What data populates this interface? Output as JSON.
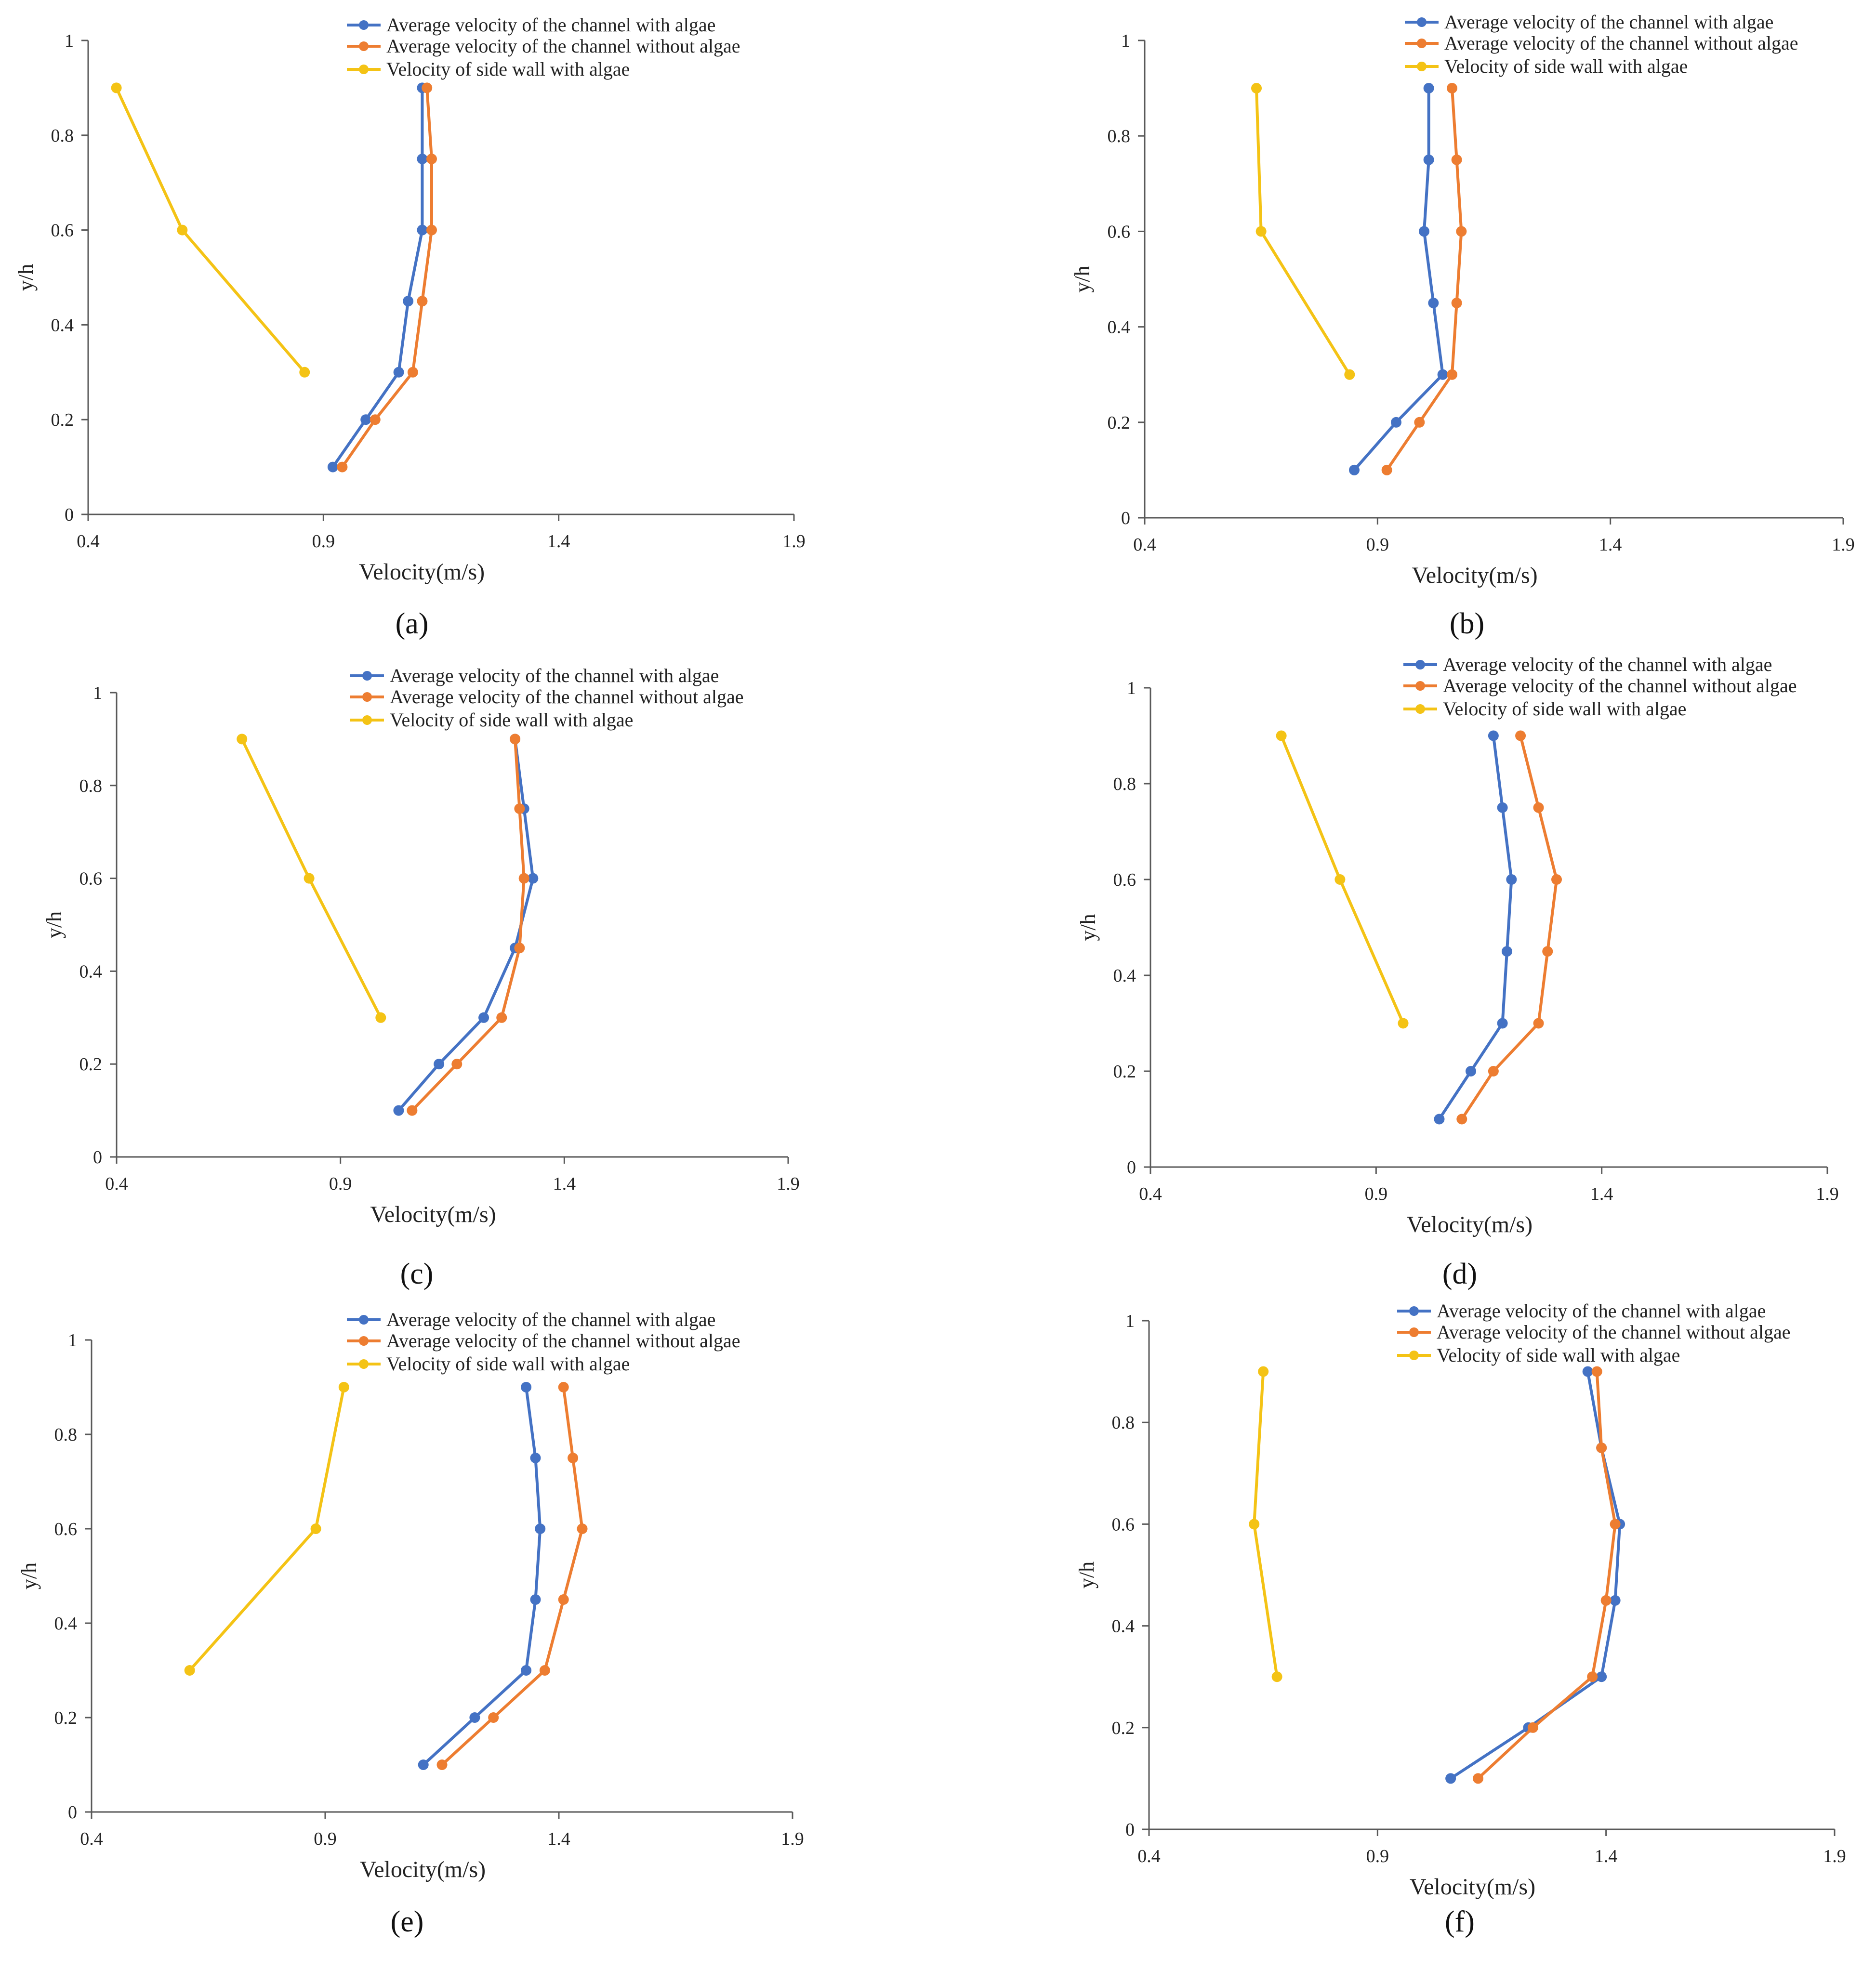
{
  "colors": {
    "with_algae": "#4472C4",
    "without_algae": "#ED7D31",
    "side_wall": "#F4C315",
    "axis": "#595959",
    "text": "#222222"
  },
  "legend_labels": [
    "Average velocity of the channel with algae",
    "Average velocity of the channel without algae",
    "Velocity of  side wall with algae"
  ],
  "chart_data": [
    {
      "type": "line",
      "panel_label": "(a)",
      "xlabel": "Velocity(m/s)",
      "ylabel": "y/h",
      "xlim": [
        0.4,
        1.9
      ],
      "ylim": [
        0,
        1
      ],
      "xticks": [
        "0.4",
        "0.9",
        "1.4",
        "1.9"
      ],
      "yticks": [
        "0",
        "0.2",
        "0.4",
        "0.6",
        "0.8",
        "1"
      ],
      "series": [
        {
          "name": "Average velocity of the channel with algae",
          "x": [
            0.92,
            0.99,
            1.06,
            1.08,
            1.11,
            1.11,
            1.11
          ],
          "y": [
            0.1,
            0.2,
            0.3,
            0.45,
            0.6,
            0.75,
            0.9
          ]
        },
        {
          "name": "Average velocity of the channel without algae",
          "x": [
            0.94,
            1.01,
            1.09,
            1.11,
            1.13,
            1.13,
            1.12
          ],
          "y": [
            0.1,
            0.2,
            0.3,
            0.45,
            0.6,
            0.75,
            0.9
          ]
        },
        {
          "name": "Velocity of  side wall with algae",
          "x": [
            0.86,
            0.6,
            0.46
          ],
          "y": [
            0.3,
            0.6,
            0.9
          ]
        }
      ]
    },
    {
      "type": "line",
      "panel_label": "(b)",
      "xlabel": "Velocity(m/s)",
      "ylabel": "y/h",
      "xlim": [
        0.4,
        1.9
      ],
      "ylim": [
        0,
        1
      ],
      "xticks": [
        "0.4",
        "0.9",
        "1.4",
        "1.9"
      ],
      "yticks": [
        "0",
        "0.2",
        "0.4",
        "0.6",
        "0.8",
        "1"
      ],
      "series": [
        {
          "name": "Average velocity of the channel with algae",
          "x": [
            0.85,
            0.94,
            1.04,
            1.02,
            1.0,
            1.01,
            1.01
          ],
          "y": [
            0.1,
            0.2,
            0.3,
            0.45,
            0.6,
            0.75,
            0.9
          ]
        },
        {
          "name": "Average velocity of the channel without algae",
          "x": [
            0.92,
            0.99,
            1.06,
            1.07,
            1.08,
            1.07,
            1.06
          ],
          "y": [
            0.1,
            0.2,
            0.3,
            0.45,
            0.6,
            0.75,
            0.9
          ]
        },
        {
          "name": "Velocity of  side wall with algae",
          "x": [
            0.84,
            0.65,
            0.64
          ],
          "y": [
            0.3,
            0.6,
            0.9
          ]
        }
      ]
    },
    {
      "type": "line",
      "panel_label": "(c)",
      "xlabel": "Velocity(m/s)",
      "ylabel": "y/h",
      "xlim": [
        0.4,
        1.9
      ],
      "ylim": [
        0,
        1
      ],
      "xticks": [
        "0.4",
        "0.9",
        "1.4",
        "1.9"
      ],
      "yticks": [
        "0",
        "0.2",
        "0.4",
        "0.6",
        "0.8",
        "1"
      ],
      "series": [
        {
          "name": "Average velocity of the channel with algae",
          "x": [
            1.03,
            1.12,
            1.22,
            1.29,
            1.33,
            1.31,
            1.29
          ],
          "y": [
            0.1,
            0.2,
            0.3,
            0.45,
            0.6,
            0.75,
            0.9
          ]
        },
        {
          "name": "Average velocity of the channel without algae",
          "x": [
            1.06,
            1.16,
            1.26,
            1.3,
            1.31,
            1.3,
            1.29
          ],
          "y": [
            0.1,
            0.2,
            0.3,
            0.45,
            0.6,
            0.75,
            0.9
          ]
        },
        {
          "name": "Velocity of  side wall with algae",
          "x": [
            0.99,
            0.83,
            0.68
          ],
          "y": [
            0.3,
            0.6,
            0.9
          ]
        }
      ]
    },
    {
      "type": "line",
      "panel_label": "(d)",
      "xlabel": "Velocity(m/s)",
      "ylabel": "y/h",
      "xlim": [
        0.4,
        1.9
      ],
      "ylim": [
        0,
        1
      ],
      "xticks": [
        "0.4",
        "0.9",
        "1.4",
        "1.9"
      ],
      "yticks": [
        "0",
        "0.2",
        "0.4",
        "0.6",
        "0.8",
        "1"
      ],
      "series": [
        {
          "name": "Average velocity of the channel with algae",
          "x": [
            1.04,
            1.11,
            1.18,
            1.19,
            1.2,
            1.18,
            1.16
          ],
          "y": [
            0.1,
            0.2,
            0.3,
            0.45,
            0.6,
            0.75,
            0.9
          ]
        },
        {
          "name": "Average velocity of the channel without algae",
          "x": [
            1.09,
            1.16,
            1.26,
            1.28,
            1.3,
            1.26,
            1.22
          ],
          "y": [
            0.1,
            0.2,
            0.3,
            0.45,
            0.6,
            0.75,
            0.9
          ]
        },
        {
          "name": "Velocity of  side wall with algae",
          "x": [
            0.96,
            0.82,
            0.69
          ],
          "y": [
            0.3,
            0.6,
            0.9
          ]
        }
      ]
    },
    {
      "type": "line",
      "panel_label": "(e)",
      "xlabel": "Velocity(m/s)",
      "ylabel": "y/h",
      "xlim": [
        0.4,
        1.9
      ],
      "ylim": [
        0,
        1
      ],
      "xticks": [
        "0.4",
        "0.9",
        "1.4",
        "1.9"
      ],
      "yticks": [
        "0",
        "0.2",
        "0.4",
        "0.6",
        "0.8",
        "1"
      ],
      "series": [
        {
          "name": "Average velocity of the channel with algae",
          "x": [
            1.11,
            1.22,
            1.33,
            1.35,
            1.36,
            1.35,
            1.33
          ],
          "y": [
            0.1,
            0.2,
            0.3,
            0.45,
            0.6,
            0.75,
            0.9
          ]
        },
        {
          "name": "Average velocity of the channel without algae",
          "x": [
            1.15,
            1.26,
            1.37,
            1.41,
            1.45,
            1.43,
            1.41
          ],
          "y": [
            0.1,
            0.2,
            0.3,
            0.45,
            0.6,
            0.75,
            0.9
          ]
        },
        {
          "name": "Velocity of  side wall with algae",
          "x": [
            0.61,
            0.88,
            0.94
          ],
          "y": [
            0.3,
            0.6,
            0.9
          ]
        }
      ]
    },
    {
      "type": "line",
      "panel_label": "(f)",
      "xlabel": "Velocity(m/s)",
      "ylabel": "y/h",
      "xlim": [
        0.4,
        1.9
      ],
      "ylim": [
        0,
        1
      ],
      "xticks": [
        "0.4",
        "0.9",
        "1.4",
        "1.9"
      ],
      "yticks": [
        "0",
        "0.2",
        "0.4",
        "0.6",
        "0.8",
        "1"
      ],
      "series": [
        {
          "name": "Average velocity of the channel with algae",
          "x": [
            1.06,
            1.23,
            1.39,
            1.42,
            1.43,
            1.39,
            1.36
          ],
          "y": [
            0.1,
            0.2,
            0.3,
            0.45,
            0.6,
            0.75,
            0.9
          ]
        },
        {
          "name": "Average velocity of the channel without algae",
          "x": [
            1.12,
            1.24,
            1.37,
            1.4,
            1.42,
            1.39,
            1.38
          ],
          "y": [
            0.1,
            0.2,
            0.3,
            0.45,
            0.6,
            0.75,
            0.9
          ]
        },
        {
          "name": "Velocity of  side wall with algae",
          "x": [
            0.68,
            0.63,
            0.65
          ],
          "y": [
            0.3,
            0.6,
            0.9
          ]
        }
      ]
    }
  ]
}
